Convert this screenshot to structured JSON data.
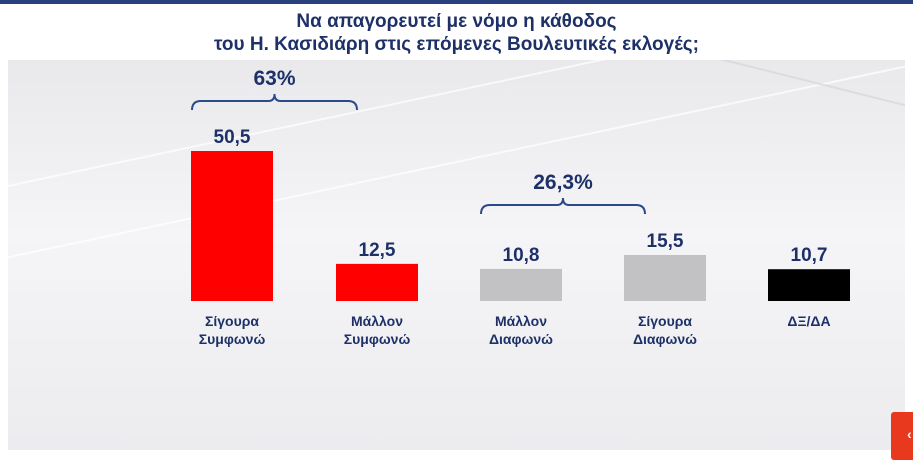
{
  "header": {
    "line1": "Να απαγορευτεί με νόμο η κάθοδος",
    "line2": "του Η. Κασιδιάρη στις επόμενες Βουλευτικές εκλογές;"
  },
  "colors": {
    "title": "#1d3168",
    "red": "#ff0000",
    "gray": "#c2c2c4",
    "black": "#000000",
    "brace": "#2a4a8a",
    "corner": "#e8391f"
  },
  "chart_data": {
    "type": "bar",
    "categories": [
      [
        "Σίγουρα",
        "Συμφωνώ"
      ],
      [
        "Μάλλον",
        "Συμφωνώ"
      ],
      [
        "Μάλλον",
        "Διαφωνώ"
      ],
      [
        "Σίγουρα",
        "Διαφωνώ"
      ],
      [
        "ΔΞ/ΔΑ"
      ]
    ],
    "values": [
      50.5,
      12.5,
      10.8,
      15.5,
      10.7
    ],
    "value_labels": [
      "50,5",
      "12,5",
      "10,8",
      "15,5",
      "10,7"
    ],
    "bar_colors": [
      "#ff0000",
      "#ff0000",
      "#c2c2c4",
      "#c2c2c4",
      "#000000"
    ],
    "groups": [
      {
        "label": "63%",
        "from": 0,
        "to": 1
      },
      {
        "label": "26,3%",
        "from": 2,
        "to": 3
      }
    ],
    "title": "Να απαγορευτεί με νόμο η κάθοδος του Η. Κασιδιάρη στις επόμενες Βουλευτικές εκλογές;",
    "ylim": [
      0,
      60
    ],
    "grid": false
  }
}
